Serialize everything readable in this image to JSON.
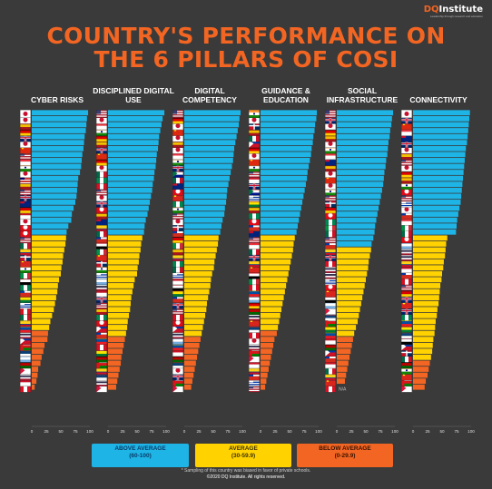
{
  "header": {
    "title_line1": "COUNTRY'S PERFORMANCE ON",
    "title_line2": "THE 6 PILLARS OF COSI",
    "logo_mark": "DQ",
    "logo_text": "Institute",
    "logo_tagline": "Leadership through research and education"
  },
  "colors": {
    "background": "#3a3a3a",
    "above": "#1eb4e6",
    "average": "#ffd200",
    "below": "#f26522",
    "title": "#f26522"
  },
  "legend": [
    {
      "label": "ABOVE AVERAGE",
      "range": "(60-100)",
      "color": "#1eb4e6"
    },
    {
      "label": "AVERAGE",
      "range": "(30-59.9)",
      "color": "#ffd200"
    },
    {
      "label": "BELOW AVERAGE",
      "range": "(0-29.9)",
      "color": "#f26522"
    }
  ],
  "footnote": {
    "note": "* Sampling of this country was biased in favor of private schools.",
    "copyright": "©2020 DQ Institute. All rights reserved."
  },
  "na_label": "N/A",
  "chart_data": [
    {
      "type": "bar",
      "orientation": "horizontal",
      "title": "CYBER RISKS",
      "xlim": [
        0,
        100
      ],
      "xticks": [
        0,
        25,
        50,
        75,
        100
      ],
      "values": [
        97,
        95,
        94,
        93,
        91,
        90,
        89,
        87,
        86,
        85,
        83,
        80,
        79,
        78,
        77,
        75,
        72,
        69,
        68,
        63,
        60,
        59,
        58,
        56,
        54,
        53,
        51,
        50,
        47,
        45,
        44,
        42,
        40,
        38,
        35,
        32,
        30,
        28,
        27,
        22,
        20,
        17,
        15,
        11,
        10,
        8,
        5
      ],
      "flags": [
        "japan",
        "korea",
        "spain",
        "germany",
        "uk",
        "korea",
        "china",
        "usa",
        "singapore",
        "india",
        "japan",
        "malaysia",
        "spain",
        "usa",
        "uk",
        "australia",
        "germany",
        "indonesia",
        "japan",
        "turkey",
        "turkey",
        "usa",
        "mexico",
        "colombia",
        "dominican-republic",
        "vietnam",
        "india",
        "italy",
        "egypt",
        "nigeria",
        "chile",
        "bolivia",
        "uruguay",
        "peru",
        "mexico",
        "colombia",
        "ecuador",
        "thailand",
        "philippines",
        "oman",
        "serbia",
        "argentina",
        "kenya",
        "nepal",
        "thailand",
        "indonesia",
        "peru"
      ]
    },
    {
      "type": "bar",
      "orientation": "horizontal",
      "title": "DISCIPLINED DIGITAL USE",
      "xlim": [
        0,
        100
      ],
      "xticks": [
        0,
        25,
        50,
        75,
        100
      ],
      "values": [
        97,
        94,
        92,
        90,
        88,
        87,
        86,
        84,
        83,
        82,
        80,
        79,
        77,
        76,
        74,
        72,
        70,
        68,
        65,
        63,
        62,
        59,
        57,
        56,
        54,
        53,
        51,
        50,
        46,
        44,
        42,
        40,
        39,
        38,
        36,
        34,
        33,
        31,
        29,
        27,
        25,
        23,
        22,
        20,
        18,
        16,
        14
      ],
      "flags": [
        "usa",
        "korea",
        "singapore",
        "india",
        "germany",
        "spain",
        "uk",
        "china",
        "germany",
        "japan",
        "mexico",
        "nigeria",
        "peru",
        "usa",
        "japan",
        "uk",
        "turkey",
        "spain",
        "australia",
        "colombia",
        "mexico",
        "chile",
        "egypt",
        "italy",
        "vietnam",
        "dominican-republic",
        "india",
        "uruguay",
        "argentina",
        "thailand",
        "indonesia",
        "uk",
        "usa",
        "spain",
        "nigeria",
        "turkey",
        "philippines",
        "chile",
        "ecuador",
        "peru",
        "bolivia",
        "kenya",
        "oman",
        "colombia",
        "serbia",
        "thailand",
        "nepal"
      ]
    },
    {
      "type": "bar",
      "orientation": "horizontal",
      "title": "DIGITAL COMPETENCY",
      "xlim": [
        0,
        100
      ],
      "xticks": [
        0,
        25,
        50,
        75,
        100
      ],
      "values": [
        97,
        95,
        94,
        92,
        90,
        88,
        86,
        85,
        84,
        82,
        80,
        78,
        76,
        74,
        73,
        72,
        70,
        69,
        66,
        64,
        62,
        59,
        58,
        56,
        54,
        52,
        51,
        48,
        46,
        45,
        43,
        41,
        39,
        38,
        36,
        34,
        32,
        30,
        28,
        26,
        24,
        22,
        20,
        18,
        16,
        14,
        12
      ],
      "flags": [
        "usa",
        "germany",
        "korea",
        "china",
        "japan",
        "spain",
        "korea",
        "singapore",
        "india",
        "uk",
        "south-africa",
        "mexico",
        "australia",
        "turkey",
        "vietnam",
        "nigeria",
        "india",
        "usa",
        "japan",
        "dominican-republic",
        "chile",
        "germany",
        "italy",
        "spain",
        "colombia",
        "nigeria",
        "mexico",
        "uruguay",
        "indonesia",
        "egypt",
        "bolivia",
        "chile",
        "uk",
        "usa",
        "peru",
        "turkey",
        "philippines",
        "thailand",
        "argentina",
        "ecuador",
        "indonesia",
        "kenya",
        "serbia",
        "japan",
        "uk",
        "oman",
        "nepal"
      ]
    },
    {
      "type": "bar",
      "orientation": "horizontal",
      "title": "GUIDANCE & EDUCATION",
      "xlim": [
        0,
        100
      ],
      "xticks": [
        0,
        25,
        50,
        75,
        100
      ],
      "values": [
        97,
        96,
        94,
        93,
        91,
        90,
        88,
        87,
        85,
        83,
        81,
        80,
        78,
        76,
        74,
        72,
        70,
        68,
        66,
        64,
        62,
        59,
        57,
        56,
        54,
        52,
        50,
        48,
        46,
        44,
        42,
        40,
        38,
        36,
        34,
        32,
        30,
        28,
        24,
        22,
        20,
        18,
        16,
        14,
        12,
        10,
        8
      ],
      "flags": [
        "india",
        "korea",
        "dominican-republic",
        "spain",
        "mexico",
        "philippines",
        "germany",
        "japan",
        "china",
        "india",
        "usa",
        "indonesia",
        "uk",
        "south-africa",
        "uruguay",
        "bolivia",
        "spain",
        "nigeria",
        "turkey",
        "chile",
        "australia",
        "usa",
        "singapore",
        "mexico",
        "uk",
        "colombia",
        "vietnam",
        "egypt",
        "italy",
        "peru",
        "ecuador",
        "argentina",
        "germany",
        "kenya",
        "thailand",
        "vietnam",
        "serbia",
        "peru",
        "japan",
        "thailand",
        "oman",
        "nepal",
        "indonesia",
        "colombia",
        "chile",
        "uruguay",
        "usa"
      ]
    },
    {
      "type": "bar",
      "orientation": "horizontal",
      "title": "SOCIAL INFRASTRUCTURE",
      "xlim": [
        0,
        100
      ],
      "xticks": [
        0,
        25,
        50,
        75,
        100
      ],
      "values": [
        97,
        95,
        94,
        92,
        91,
        89,
        88,
        87,
        85,
        84,
        82,
        81,
        80,
        78,
        76,
        74,
        72,
        70,
        68,
        66,
        65,
        63,
        60,
        59,
        57,
        55,
        54,
        52,
        50,
        48,
        46,
        44,
        42,
        40,
        38,
        36,
        33,
        30,
        28,
        26,
        24,
        22,
        20,
        18,
        16,
        14,
        0
      ],
      "flags": [
        "usa",
        "uk",
        "korea",
        "germany",
        "spain",
        "japan",
        "india",
        "singapore",
        "australia",
        "spain",
        "korea",
        "china",
        "japan",
        "india",
        "usa",
        "dominican-republic",
        "germany",
        "turkey",
        "nigeria",
        "italy",
        "mexico",
        "usa",
        "chile",
        "colombia",
        "uk",
        "peru",
        "thailand",
        "thailand",
        "uruguay",
        "turkey",
        "vietnam",
        "egypt",
        "argentina",
        "nepal",
        "serbia",
        "oman",
        "bolivia",
        "ecuador",
        "indonesia",
        "kenya",
        "philippines",
        "chile",
        "indonesia",
        "mexico",
        "colombia",
        "vietnam",
        "peru"
      ],
      "na_index": 46
    },
    {
      "type": "bar",
      "orientation": "horizontal",
      "title": "CONNECTIVITY",
      "xlim": [
        0,
        100
      ],
      "xticks": [
        0,
        25,
        50,
        75,
        100
      ],
      "values": [
        98,
        97,
        96,
        95,
        94,
        93,
        91,
        90,
        89,
        88,
        87,
        86,
        85,
        84,
        83,
        82,
        80,
        78,
        76,
        75,
        74,
        59,
        57,
        56,
        55,
        53,
        52,
        50,
        49,
        47,
        46,
        45,
        44,
        42,
        41,
        39,
        38,
        37,
        35,
        34,
        33,
        31,
        29,
        27,
        25,
        22,
        20
      ],
      "flags": [
        "korea",
        "uk",
        "china",
        "singapore",
        "australia",
        "uk",
        "japan",
        "spain",
        "usa",
        "korea",
        "germany",
        "spain",
        "india",
        "turkey",
        "usa",
        "uruguay",
        "japan",
        "chile",
        "singapore",
        "italy",
        "mexico",
        "turkey",
        "argentina",
        "thailand",
        "thailand",
        "colombia",
        "indonesia",
        "chile",
        "peru",
        "usa",
        "germany",
        "uk",
        "vietnam",
        "uk",
        "nigeria",
        "ecuador",
        "bolivia",
        "serbia",
        "egypt",
        "philippines",
        "dominican-republic",
        "mexico",
        "kenya",
        "india",
        "vietnam",
        "oman",
        "nepal"
      ]
    }
  ]
}
